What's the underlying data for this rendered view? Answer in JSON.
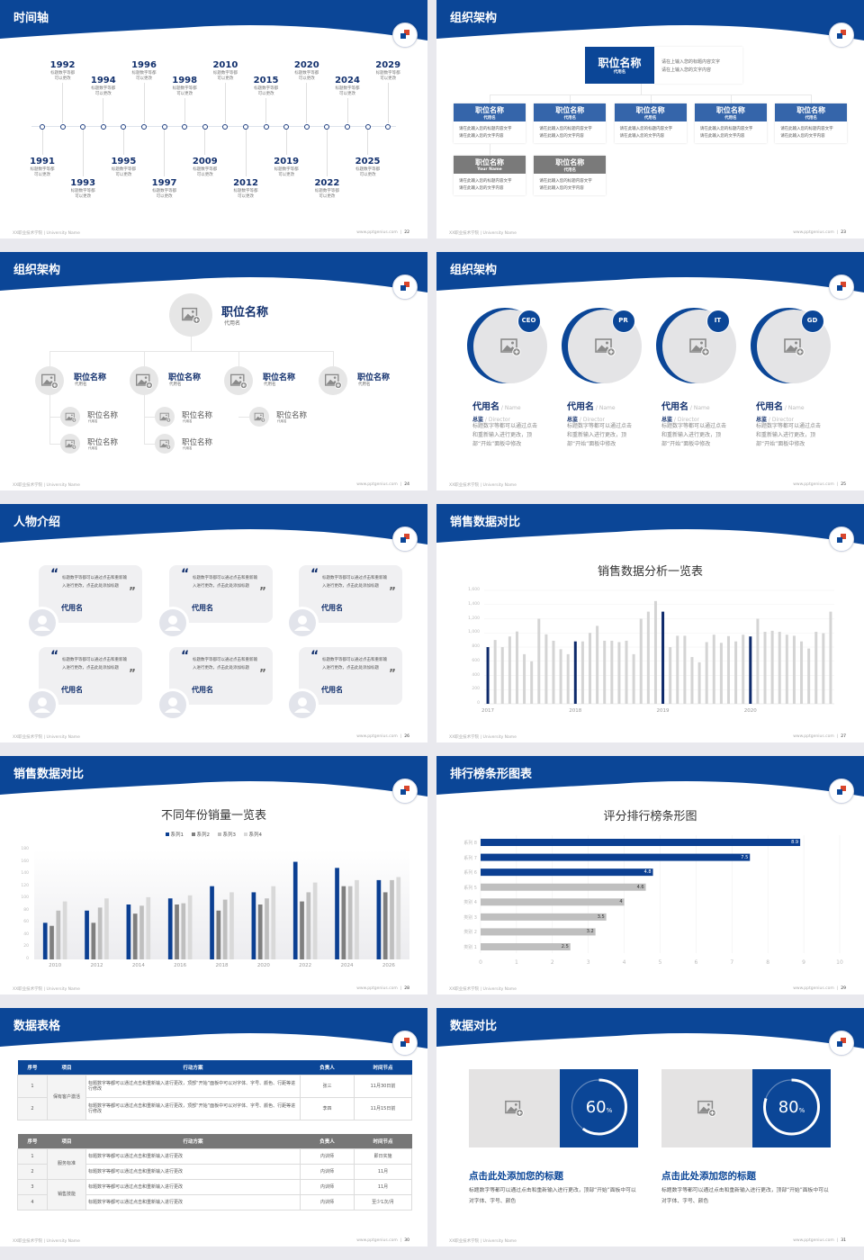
{
  "colors": {
    "primary": "#0b4697",
    "navy": "#12306d",
    "box_blue": "#3565aa",
    "box_gray": "#7a7a7a",
    "logo_red": "#d9452b"
  },
  "footer": {
    "left": "XX职业技术学院 | University Name",
    "url": "www.pptgenius.com"
  },
  "slides": [
    {
      "title": "时间轴",
      "page": "22",
      "timeline": [
        {
          "year": "1991",
          "desc": [
            "标题数字等都",
            "可以更改"
          ]
        },
        {
          "year": "1992",
          "desc": [
            "标题数字等都",
            "可以更改"
          ]
        },
        {
          "year": "1993",
          "desc": [
            "标题数字等都",
            "可以更改"
          ]
        },
        {
          "year": "1994",
          "desc": [
            "标题数字等都",
            "可以更改"
          ]
        },
        {
          "year": "1995",
          "desc": [
            "标题数字等都",
            "可以更改"
          ]
        },
        {
          "year": "1996",
          "desc": [
            "标题数字等都",
            "可以更改"
          ]
        },
        {
          "year": "1997",
          "desc": [
            "标题数字等都",
            "可以更改"
          ]
        },
        {
          "year": "1998",
          "desc": [
            "标题数字等都",
            "可以更改"
          ]
        },
        {
          "year": "2009",
          "desc": [
            "标题数字等都",
            "可以更改"
          ]
        },
        {
          "year": "2010",
          "desc": [
            "标题数字等都",
            "可以更改"
          ]
        },
        {
          "year": "2012",
          "desc": [
            "标题数字等都",
            "可以更改"
          ]
        },
        {
          "year": "2015",
          "desc": [
            "标题数字等都",
            "可以更改"
          ]
        },
        {
          "year": "2019",
          "desc": [
            "标题数字等都",
            "可以更改"
          ]
        },
        {
          "year": "2020",
          "desc": [
            "标题数字等都",
            "可以更改"
          ]
        },
        {
          "year": "2022",
          "desc": [
            "标题数字等都",
            "可以更改"
          ]
        },
        {
          "year": "2024",
          "desc": [
            "标题数字等都",
            "可以更改"
          ]
        },
        {
          "year": "2025",
          "desc": [
            "标题数字等都",
            "可以更改"
          ]
        },
        {
          "year": "2029",
          "desc": [
            "标题数字等都",
            "可以更改"
          ]
        }
      ]
    },
    {
      "title": "组织架构",
      "page": "23",
      "top": {
        "title": "职位名称",
        "sub": "代用名",
        "text": [
          "请在上输入您的标题内容文字",
          "请在上输入您的文字内容"
        ]
      },
      "boxes": [
        {
          "title": "职位名称",
          "sub": "代用名",
          "text": [
            "请在此输入您的标题内容文字",
            "请在此输入您的文字内容"
          ],
          "tone": "blue"
        },
        {
          "title": "职位名称",
          "sub": "代用名",
          "text": [
            "请在此输入您的标题内容文字",
            "请在此输入您的文字内容"
          ],
          "tone": "blue"
        },
        {
          "title": "职位名称",
          "sub": "代用名",
          "text": [
            "请在此输入您的标题内容文字",
            "请在此输入您的文字内容"
          ],
          "tone": "blue"
        },
        {
          "title": "职位名称",
          "sub": "代用名",
          "text": [
            "请在此输入您的标题内容文字",
            "请在此输入您的文字内容"
          ],
          "tone": "blue"
        },
        {
          "title": "职位名称",
          "sub": "代用名",
          "text": [
            "请在此输入您的标题内容文字",
            "请在此输入您的文字内容"
          ],
          "tone": "blue"
        },
        {
          "title": "职位名称",
          "sub": "Your Name",
          "text": [
            "请在此输入您的标题内容文字",
            "请在此输入您的文字内容"
          ],
          "tone": "gray"
        },
        {
          "title": "职位名称",
          "sub": "代用名",
          "text": [
            "请在此输入您的标题内容文字",
            "请在此输入您的文字内容"
          ],
          "tone": "gray"
        }
      ]
    },
    {
      "title": "组织架构",
      "page": "24",
      "top": {
        "title": "职位名称",
        "sub": "代用名"
      },
      "branches": [
        {
          "title": "职位名称",
          "sub": "代用名",
          "leaves": [
            {
              "title": "职位名称",
              "sub": "代用名"
            },
            {
              "title": "职位名称",
              "sub": "代用名"
            }
          ]
        },
        {
          "title": "职位名称",
          "sub": "代用名",
          "leaves": [
            {
              "title": "职位名称",
              "sub": "代用名"
            },
            {
              "title": "职位名称",
              "sub": "代用名"
            }
          ]
        },
        {
          "title": "职位名称",
          "sub": "代用名",
          "leaves": [
            {
              "title": "职位名称",
              "sub": "代用名"
            }
          ]
        },
        {
          "title": "职位名称",
          "sub": "代用名",
          "leaves": []
        }
      ]
    },
    {
      "title": "组织架构",
      "page": "25",
      "cards": [
        {
          "badge": "CEO",
          "name": "代用名",
          "name_en": " / Name",
          "role": "总监",
          "role_en": " /  Director",
          "desc": "标题数字等都可以通过点击和重新输入进行更改，顶部“开始”面板中修改"
        },
        {
          "badge": "PR",
          "name": "代用名",
          "name_en": " / Name",
          "role": "总监",
          "role_en": " /  Director",
          "desc": "标题数字等都可以通过点击和重新输入进行更改，顶部“开始”面板中修改"
        },
        {
          "badge": "IT",
          "name": "代用名",
          "name_en": " / Name",
          "role": "总监",
          "role_en": " /  Director",
          "desc": "标题数字等都可以通过点击和重新输入进行更改，顶部“开始”面板中修改"
        },
        {
          "badge": "GD",
          "name": "代用名",
          "name_en": " / Name",
          "role": "总监",
          "role_en": " /  Director",
          "desc": "标题数字等都可以通过点击和重新输入进行更改，顶部“开始”面板中修改"
        }
      ]
    },
    {
      "title": "人物介绍",
      "page": "26",
      "quotes": [
        {
          "text": "标题数字等都可以通过点击和重新输入进行更改，点击此处添加标题",
          "name": "代用名"
        },
        {
          "text": "标题数字等都可以通过点击和重新输入进行更改，点击此处添加标题",
          "name": "代用名"
        },
        {
          "text": "标题数字等都可以通过点击和重新输入进行更改，点击此处添加标题",
          "name": "代用名"
        },
        {
          "text": "标题数字等都可以通过点击和重新输入进行更改，点击此处添加标题",
          "name": "代用名"
        },
        {
          "text": "标题数字等都可以通过点击和重新输入进行更改，点击此处添加标题",
          "name": "代用名"
        },
        {
          "text": "标题数字等都可以通过点击和重新输入进行更改，点击此处添加标题",
          "name": "代用名"
        }
      ],
      "quote_open": "“",
      "quote_close": "”"
    },
    {
      "title": "销售数据对比",
      "page": "27",
      "chart": 0
    },
    {
      "title": "销售数据对比",
      "page": "28",
      "chart": 1
    },
    {
      "title": "排行榜条形图表",
      "page": "29",
      "chart": 2
    },
    {
      "title": "数据表格",
      "page": "30",
      "table1": {
        "headers": [
          "序号",
          "项目",
          "行动方案",
          "负责人",
          "时间节点"
        ],
        "groups": [
          {
            "item": "保有客户激活",
            "rows": [
              {
                "no": "1",
                "plan": "标题数字等都可以通过点击和重新输入进行更改，顶部“开始”面板中可以对字体、字号、颜色、行距等进行修改",
                "owner": "张三",
                "time": "11月30日前"
              },
              {
                "no": "2",
                "plan": "标题数字等都可以通过点击和重新输入进行更改，顶部“开始”面板中可以对字体、字号、颜色、行距等进行修改",
                "owner": "李四",
                "time": "11月15日前"
              }
            ]
          }
        ]
      },
      "table2": {
        "headers": [
          "序号",
          "项目",
          "行动方案",
          "负责人",
          "时间节点"
        ],
        "groups": [
          {
            "item": "服务标准",
            "rows": [
              {
                "no": "1",
                "plan": "标题数字等都可以通过点击和重新输入进行更改",
                "owner": "内训师",
                "time": "即日实施"
              },
              {
                "no": "2",
                "plan": "标题数字等都可以通过点击和重新输入进行更改",
                "owner": "内训师",
                "time": "11月"
              }
            ]
          },
          {
            "item": "销售技能",
            "rows": [
              {
                "no": "3",
                "plan": "标题数字等都可以通过点击和重新输入进行更改",
                "owner": "内训师",
                "time": "11月"
              },
              {
                "no": "4",
                "plan": "标题数字等都可以通过点击和重新输入进行更改",
                "owner": "内训师",
                "time": "至少1次/月"
              }
            ]
          }
        ]
      }
    },
    {
      "title": "数据对比",
      "page": "31",
      "panels": [
        {
          "percent": 60,
          "unit": "%",
          "title": "点击此处添加您的标题",
          "desc": "标题数字等都可以通过点击和重新输入进行更改，顶部“开始”面板中可以对字体、字号、颜色"
        },
        {
          "percent": 80,
          "unit": "%",
          "title": "点击此处添加您的标题",
          "desc": "标题数字等都可以通过点击和重新输入进行更改，顶部“开始”面板中可以对字体、字号、颜色"
        }
      ]
    }
  ],
  "chart_data": [
    {
      "type": "bar",
      "title": "销售数据分析一览表",
      "x_tick_labels": [
        "2017",
        "2018",
        "2019",
        "2020"
      ],
      "y_ticks": [
        "0",
        "200",
        "400",
        "600",
        "800",
        "1,000",
        "1,200",
        "1,400",
        "1,600"
      ],
      "ylim": [
        0,
        1600
      ],
      "grid": true,
      "values": [
        800,
        900,
        800,
        950,
        1020,
        700,
        600,
        1200,
        980,
        890,
        770,
        700,
        880,
        880,
        1000,
        1100,
        890,
        890,
        870,
        890,
        700,
        1200,
        1300,
        1450,
        1300,
        800,
        960,
        960,
        660,
        585,
        870,
        975,
        860,
        955,
        880,
        975,
        950,
        1200,
        1015,
        1030,
        1015,
        975,
        960,
        880,
        780,
        1015,
        995,
        1300
      ],
      "highlight_indices": [
        0,
        12,
        24,
        36
      ],
      "colors": {
        "bar": "#d4d4d4",
        "highlight": "#0e2a6b"
      }
    },
    {
      "type": "bar",
      "title": "不同年份销量一览表",
      "legend": "top",
      "categories": [
        "2010",
        "2012",
        "2014",
        "2016",
        "2018",
        "2020",
        "2022",
        "2024",
        "2026"
      ],
      "y_ticks": [
        "0",
        "20",
        "40",
        "60",
        "80",
        "100",
        "120",
        "140",
        "160",
        "180"
      ],
      "ylim": [
        0,
        180
      ],
      "series": [
        {
          "name": "系列1",
          "color": "#0b3f92",
          "values": [
            60,
            80,
            90,
            100,
            120,
            110,
            160,
            150,
            130
          ]
        },
        {
          "name": "系列2",
          "color": "#7f7f7f",
          "values": [
            55,
            60,
            75,
            90,
            80,
            90,
            95,
            120,
            110
          ]
        },
        {
          "name": "系列3",
          "color": "#bfbfbf",
          "values": [
            80,
            85,
            88,
            92,
            98,
            100,
            110,
            120,
            130
          ]
        },
        {
          "name": "系列4",
          "color": "#d9d9d9",
          "values": [
            95,
            100,
            102,
            105,
            110,
            120,
            126,
            130,
            135
          ]
        }
      ]
    },
    {
      "type": "bar",
      "orientation": "horizontal",
      "title": "评分排行榜条形图",
      "categories": [
        "类别 1",
        "类别 2",
        "类别 3",
        "类别 4",
        "系列 5",
        "系列 6",
        "系列 7",
        "系列 8"
      ],
      "values": [
        2.5,
        3.2,
        3.5,
        4,
        4.6,
        4.8,
        7.5,
        8.9
      ],
      "x_ticks": [
        "0",
        "1",
        "2",
        "3",
        "4",
        "5",
        "6",
        "7",
        "8",
        "9",
        "10"
      ],
      "xlim": [
        0,
        10
      ],
      "grid": true,
      "bar_colors": [
        "#bfbfbf",
        "#bfbfbf",
        "#bfbfbf",
        "#bfbfbf",
        "#bfbfbf",
        "#0b3f92",
        "#0b3f92",
        "#0b3f92"
      ]
    }
  ]
}
